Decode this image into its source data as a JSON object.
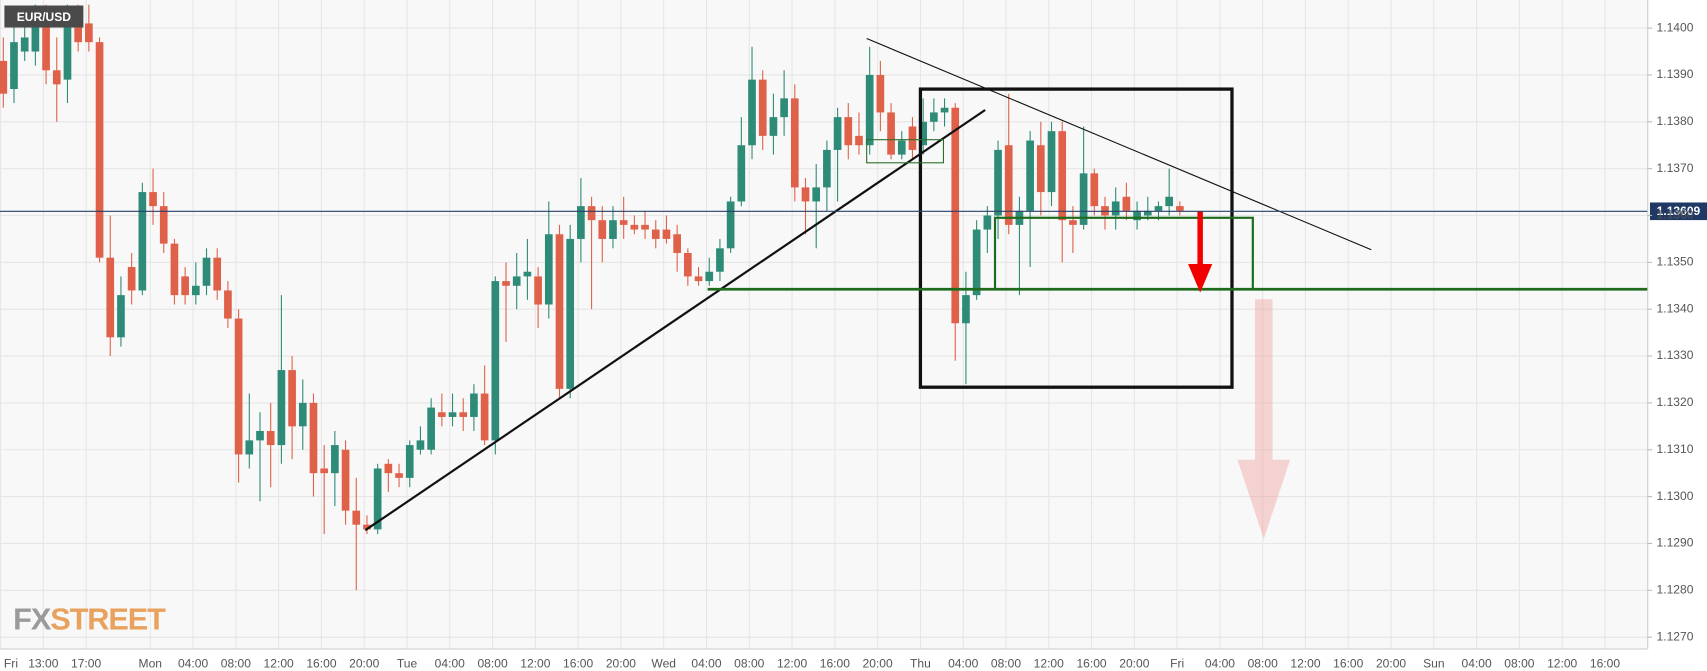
{
  "chart_data": {
    "type": "candlestick",
    "title": "EUR/USD",
    "watermark": [
      "FX",
      "STREET"
    ],
    "up_color": "#2e8b78",
    "down_color": "#e0614a",
    "grid": true,
    "ylim": [
      1.1267,
      1.1406
    ],
    "yticks": [
      {
        "value": 1.127,
        "label": "1.1270"
      },
      {
        "value": 1.128,
        "label": "1.1280"
      },
      {
        "value": 1.129,
        "label": "1.1290"
      },
      {
        "value": 1.13,
        "label": "1.1300"
      },
      {
        "value": 1.131,
        "label": "1.1310"
      },
      {
        "value": 1.132,
        "label": "1.1320"
      },
      {
        "value": 1.133,
        "label": "1.1330"
      },
      {
        "value": 1.134,
        "label": "1.1340"
      },
      {
        "value": 1.135,
        "label": "1.1350"
      },
      {
        "value": 1.136,
        "label": "1.1360"
      },
      {
        "value": 1.137,
        "label": "1.1370"
      },
      {
        "value": 1.138,
        "label": "1.1380"
      },
      {
        "value": 1.139,
        "label": "1.1390"
      },
      {
        "value": 1.14,
        "label": "1.1400"
      }
    ],
    "last_price": 1.13609,
    "categories": [
      "Fri",
      null,
      null,
      null,
      "13:00",
      null,
      null,
      null,
      "17:00",
      null,
      null,
      null,
      null,
      null,
      "Mon",
      null,
      null,
      null,
      "04:00",
      null,
      null,
      null,
      "08:00",
      null,
      null,
      null,
      "12:00",
      null,
      null,
      null,
      "16:00",
      null,
      null,
      null,
      "20:00",
      null,
      null,
      null,
      "Tue",
      null,
      null,
      null,
      "04:00",
      null,
      null,
      null,
      "08:00",
      null,
      null,
      null,
      "12:00",
      null,
      null,
      null,
      "16:00",
      null,
      null,
      null,
      "20:00",
      null,
      null,
      null,
      "Wed",
      null,
      null,
      null,
      "04:00",
      null,
      null,
      null,
      "08:00",
      null,
      null,
      null,
      "12:00",
      null,
      null,
      null,
      "16:00",
      null,
      null,
      null,
      "20:00",
      null,
      null,
      null,
      "Thu",
      null,
      null,
      null,
      "04:00",
      null,
      null,
      null,
      "08:00",
      null,
      null,
      null,
      "12:00",
      null,
      null,
      null,
      "16:00",
      null,
      null,
      null,
      "20:00",
      null,
      null,
      null,
      "Fri",
      null,
      null,
      null,
      "04:00",
      null,
      null,
      null,
      "08:00",
      null,
      null,
      null,
      "12:00",
      null,
      null,
      null,
      "16:00",
      null,
      null,
      null,
      "20:00",
      null,
      null,
      null,
      "Sun",
      null,
      null,
      null,
      "04:00",
      null,
      null,
      null,
      "08:00",
      null,
      null,
      null,
      "12:00",
      null,
      null,
      null,
      "16:00",
      null,
      null,
      null
    ],
    "open": [
      1.1393,
      1.1387,
      1.1395,
      1.1395,
      1.1401,
      1.1391,
      1.1389,
      1.1402,
      1.1401,
      1.1397,
      1.1351,
      1.1334,
      1.1349,
      1.1344,
      1.1365,
      1.1362,
      1.1354,
      1.1347,
      1.1343,
      1.1345,
      1.1351,
      1.1344,
      1.1338,
      1.1309,
      1.1312,
      1.1314,
      1.1311,
      1.1327,
      1.1315,
      1.132,
      1.1306,
      1.1305,
      1.131,
      1.1297,
      1.1294,
      1.1293,
      1.1307,
      1.1305,
      1.1304,
      1.131,
      1.131,
      1.1318,
      1.1317,
      1.1318,
      1.1317,
      1.1322,
      1.1312,
      1.1346,
      1.1345,
      1.1347,
      1.1347,
      1.1341,
      1.1356,
      1.1323,
      1.1355,
      1.1362,
      1.1359,
      1.1355,
      1.1359,
      1.1358,
      1.1358,
      1.1357,
      1.1357,
      1.1356,
      1.1352,
      1.1347,
      1.1346,
      1.1348,
      1.1353,
      1.1363,
      1.1375,
      1.1389,
      1.1377,
      1.1381,
      1.1385,
      1.1366,
      1.1363,
      1.1366,
      1.1374,
      1.1381,
      1.1377,
      1.1375,
      1.139,
      1.1382,
      1.1373,
      1.1379,
      1.1375,
      1.138,
      1.1382,
      1.1383,
      1.1337,
      1.1343,
      1.1357,
      1.136,
      1.1375,
      1.1358,
      1.1361,
      1.1375,
      1.1365,
      1.1378,
      1.1359,
      1.1358,
      1.1369,
      1.1362,
      1.136,
      1.1364,
      1.1359,
      1.136,
      1.1361,
      1.1362,
      1.1362,
      null,
      null,
      null,
      null,
      null,
      null,
      null,
      null,
      null,
      null,
      null,
      null,
      null,
      null,
      null,
      null,
      null,
      null,
      null,
      null,
      null,
      null,
      null,
      null,
      null,
      null,
      null,
      null,
      null,
      null,
      null,
      null,
      null,
      null,
      null,
      null,
      null,
      null,
      null,
      null,
      null,
      null,
      null
    ],
    "high": [
      1.1398,
      1.1402,
      1.1404,
      1.1405,
      1.1405,
      1.1398,
      1.1405,
      1.1405,
      1.1405,
      1.1398,
      1.136,
      1.1347,
      1.1352,
      1.1367,
      1.137,
      1.1365,
      1.1355,
      1.1349,
      1.135,
      1.1353,
      1.1353,
      1.1346,
      1.134,
      1.1322,
      1.1318,
      1.132,
      1.1343,
      1.133,
      1.1325,
      1.1322,
      1.1311,
      1.1314,
      1.1312,
      1.1304,
      1.1296,
      1.1307,
      1.1308,
      1.1307,
      1.1312,
      1.1315,
      1.1321,
      1.1322,
      1.1322,
      1.1321,
      1.1324,
      1.1328,
      1.1347,
      1.135,
      1.1352,
      1.1355,
      1.1349,
      1.1363,
      1.1358,
      1.1358,
      1.1368,
      1.1364,
      1.1362,
      1.1362,
      1.1364,
      1.136,
      1.1361,
      1.1359,
      1.136,
      1.1358,
      1.1353,
      1.1349,
      1.1351,
      1.1355,
      1.1364,
      1.1381,
      1.1396,
      1.1391,
      1.1386,
      1.1391,
      1.1388,
      1.1368,
      1.1371,
      1.1376,
      1.1383,
      1.1384,
      1.1382,
      1.1396,
      1.1393,
      1.1384,
      1.1378,
      1.1381,
      1.1385,
      1.1385,
      1.1385,
      1.1384,
      1.1348,
      1.1359,
      1.1362,
      1.1376,
      1.1386,
      1.1364,
      1.1378,
      1.138,
      1.138,
      1.138,
      1.1362,
      1.1379,
      1.137,
      1.1364,
      1.1366,
      1.1367,
      1.1363,
      1.1364,
      1.1363,
      1.137,
      1.1363,
      null,
      null,
      null,
      null,
      null,
      null,
      null,
      null,
      null,
      null,
      null,
      null,
      null,
      null,
      null,
      null,
      null,
      null,
      null,
      null,
      null,
      null,
      null,
      null,
      null,
      null,
      null,
      null,
      null,
      null,
      null,
      null,
      null,
      null,
      null,
      null,
      null,
      null,
      null,
      null,
      null,
      null,
      null
    ],
    "low": [
      1.1383,
      1.1384,
      1.1393,
      1.1392,
      1.1388,
      1.138,
      1.1384,
      1.1395,
      1.1395,
      1.135,
      1.133,
      1.1332,
      1.1341,
      1.1343,
      1.1358,
      1.1352,
      1.1341,
      1.1341,
      1.1341,
      1.1343,
      1.1342,
      1.1336,
      1.1303,
      1.1306,
      1.1299,
      1.1302,
      1.1307,
      1.1308,
      1.131,
      1.13,
      1.1292,
      1.1298,
      1.1294,
      1.128,
      1.1292,
      1.1292,
      1.1301,
      1.1302,
      1.1302,
      1.1309,
      1.1309,
      1.1315,
      1.1315,
      1.1314,
      1.1314,
      1.1311,
      1.1309,
      1.1333,
      1.134,
      1.1342,
      1.1336,
      1.1338,
      1.1321,
      1.1321,
      1.135,
      1.134,
      1.135,
      1.1353,
      1.1355,
      1.1356,
      1.1355,
      1.1353,
      1.1354,
      1.1348,
      1.1345,
      1.1345,
      1.1345,
      1.1346,
      1.1352,
      1.1362,
      1.1372,
      1.1374,
      1.1373,
      1.1377,
      1.1363,
      1.1356,
      1.1353,
      1.1361,
      1.1363,
      1.1372,
      1.1373,
      1.1373,
      1.1378,
      1.1372,
      1.1372,
      1.1372,
      1.1373,
      1.1378,
      1.1379,
      1.1329,
      1.1324,
      1.1342,
      1.1352,
      1.1355,
      1.1356,
      1.1343,
      1.1349,
      1.136,
      1.1362,
      1.135,
      1.1352,
      1.1357,
      1.136,
      1.1357,
      1.1357,
      1.1359,
      1.1357,
      1.1359,
      1.1359,
      1.136,
      1.136,
      null,
      null,
      null,
      null,
      null,
      null,
      null,
      null,
      null,
      null,
      null,
      null,
      null,
      null,
      null,
      null,
      null,
      null,
      null,
      null,
      null,
      null,
      null,
      null,
      null,
      null,
      null,
      null,
      null,
      null,
      null,
      null,
      null,
      null,
      null,
      null,
      null,
      null,
      null,
      null,
      null,
      null,
      null
    ],
    "close": [
      1.1386,
      1.1397,
      1.1398,
      1.1402,
      1.1391,
      1.1388,
      1.1402,
      1.1397,
      1.1397,
      1.1351,
      1.1334,
      1.1343,
      1.1344,
      1.1365,
      1.1362,
      1.1354,
      1.1343,
      1.1343,
      1.1345,
      1.1351,
      1.1344,
      1.1338,
      1.1309,
      1.1312,
      1.1314,
      1.1311,
      1.1327,
      1.1315,
      1.132,
      1.1305,
      1.1305,
      1.1311,
      1.1297,
      1.1294,
      1.1293,
      1.1306,
      1.1305,
      1.1304,
      1.1311,
      1.1312,
      1.1319,
      1.1317,
      1.1318,
      1.1317,
      1.1322,
      1.1312,
      1.1346,
      1.1345,
      1.1347,
      1.1348,
      1.1341,
      1.1356,
      1.1323,
      1.1355,
      1.1362,
      1.1359,
      1.1355,
      1.1359,
      1.1358,
      1.1357,
      1.1357,
      1.1355,
      1.1355,
      1.1352,
      1.1347,
      1.1346,
      1.1348,
      1.1353,
      1.1363,
      1.1375,
      1.1389,
      1.1377,
      1.1381,
      1.1385,
      1.1366,
      1.1363,
      1.1366,
      1.1374,
      1.1381,
      1.1375,
      1.1375,
      1.139,
      1.1382,
      1.1373,
      1.1376,
      1.1374,
      1.138,
      1.1382,
      1.1383,
      1.1337,
      1.1343,
      1.1357,
      1.136,
      1.1374,
      1.1358,
      1.1361,
      1.1376,
      1.1365,
      1.1378,
      1.1359,
      1.1358,
      1.1369,
      1.1362,
      1.136,
      1.1363,
      1.1361,
      1.1361,
      1.1361,
      1.1362,
      1.1364,
      1.1361,
      null,
      null,
      null,
      null,
      null,
      null,
      null,
      null,
      null,
      null,
      null,
      null,
      null,
      null,
      null,
      null,
      null,
      null,
      null,
      null,
      null,
      null,
      null,
      null,
      null,
      null,
      null,
      null,
      null,
      null,
      null,
      null,
      null,
      null,
      null,
      null,
      null,
      null,
      null,
      null,
      null,
      null,
      null
    ]
  }
}
